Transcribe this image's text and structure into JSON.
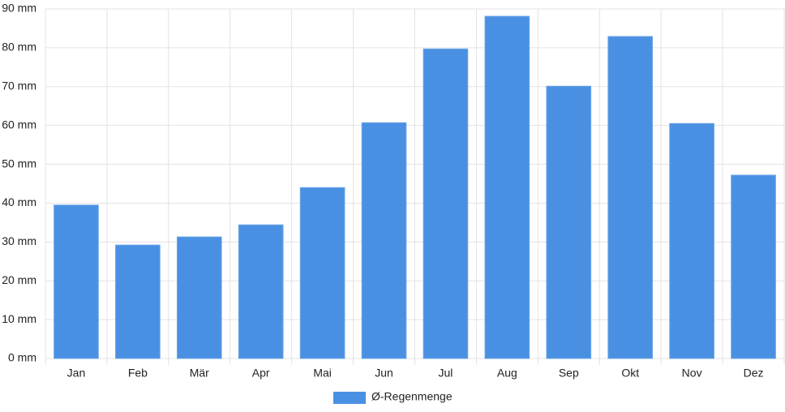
{
  "chart_data": {
    "type": "bar",
    "categories": [
      "Jan",
      "Feb",
      "Mär",
      "Apr",
      "Mai",
      "Jun",
      "Jul",
      "Aug",
      "Sep",
      "Okt",
      "Nov",
      "Dez"
    ],
    "series": [
      {
        "name": "Ø-Regenmenge",
        "color": "#4a90e2",
        "values": [
          39.5,
          29.2,
          31.3,
          34.4,
          44.0,
          60.7,
          79.7,
          88.1,
          70.1,
          82.9,
          60.5,
          47.2
        ]
      }
    ],
    "ylim": [
      0,
      90
    ],
    "yticks": [
      {
        "value": 0,
        "label": "0 mm"
      },
      {
        "value": 10,
        "label": "10 mm"
      },
      {
        "value": 20,
        "label": "20 mm"
      },
      {
        "value": 30,
        "label": "30 mm"
      },
      {
        "value": 40,
        "label": "40 mm"
      },
      {
        "value": 50,
        "label": "50 mm"
      },
      {
        "value": 60,
        "label": "60 mm"
      },
      {
        "value": 70,
        "label": "70 mm"
      },
      {
        "value": 80,
        "label": "80 mm"
      },
      {
        "value": 90,
        "label": "90 mm"
      }
    ],
    "grid": true,
    "legend": "bottom"
  }
}
